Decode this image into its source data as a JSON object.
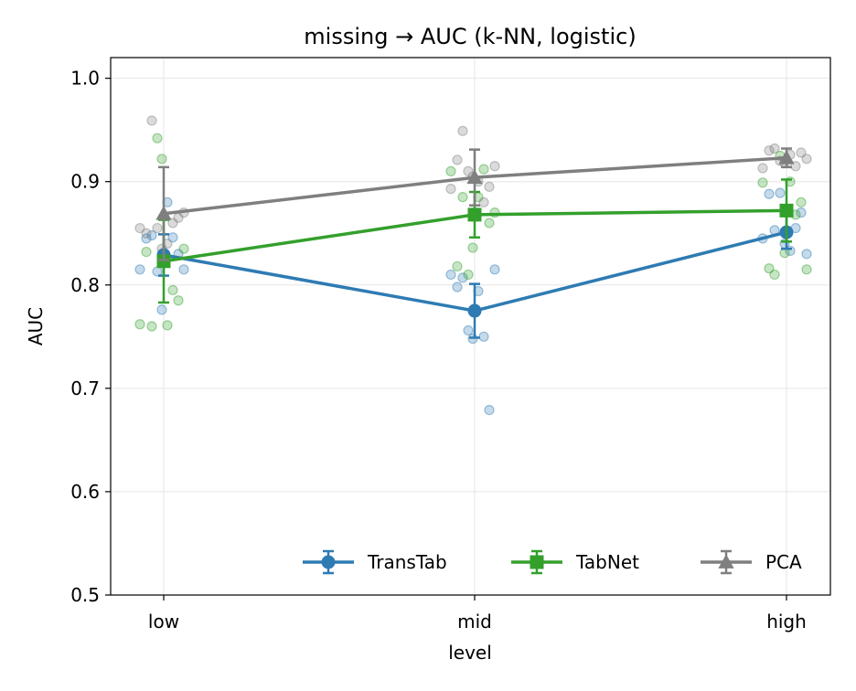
{
  "chart_data": {
    "type": "line",
    "title": "missing → AUC (k-NN, logistic)",
    "xlabel": "level",
    "ylabel": "AUC",
    "categories": [
      "low",
      "mid",
      "high"
    ],
    "ylim": [
      0.5,
      1.02
    ],
    "yticks": [
      "0.5",
      "0.6",
      "0.7",
      "0.8",
      "0.9",
      "1.0"
    ],
    "grid": true,
    "legend": "lower-right",
    "series": [
      {
        "name": "TransTab",
        "color": "#2e7bb3",
        "marker": "circle",
        "values": [
          0.829,
          0.775,
          0.851
        ],
        "err": [
          0.02,
          0.026,
          0.016
        ],
        "points": [
          [
            0.815,
            0.845,
            0.848,
            0.813,
            0.776,
            0.88,
            0.846,
            0.83,
            0.815
          ],
          [
            0.81,
            0.798,
            0.807,
            0.756,
            0.748,
            0.794,
            0.75,
            0.679,
            0.815
          ],
          [
            0.845,
            0.888,
            0.853,
            0.889,
            0.84,
            0.833,
            0.855,
            0.87,
            0.83
          ]
        ]
      },
      {
        "name": "TabNet",
        "color": "#33a02c",
        "marker": "square",
        "values": [
          0.823,
          0.868,
          0.872
        ],
        "err": [
          0.04,
          0.022,
          0.03
        ],
        "points": [
          [
            0.762,
            0.832,
            0.76,
            0.942,
            0.922,
            0.761,
            0.795,
            0.785,
            0.835
          ],
          [
            0.91,
            0.818,
            0.885,
            0.81,
            0.836,
            0.885,
            0.912,
            0.86,
            0.87
          ],
          [
            0.899,
            0.816,
            0.81,
            0.925,
            0.831,
            0.9,
            0.868,
            0.88,
            0.815
          ]
        ]
      },
      {
        "name": "PCA",
        "color": "#7f7f7f",
        "marker": "triangle",
        "values": [
          0.869,
          0.904,
          0.923
        ],
        "err": [
          0.045,
          0.027,
          0.009
        ],
        "points": [
          [
            0.855,
            0.85,
            0.959,
            0.855,
            0.835,
            0.84,
            0.86,
            0.865,
            0.87
          ],
          [
            0.893,
            0.921,
            0.949,
            0.91,
            0.905,
            0.9,
            0.88,
            0.895,
            0.915
          ],
          [
            0.913,
            0.93,
            0.932,
            0.92,
            0.918,
            0.926,
            0.915,
            0.928,
            0.922
          ]
        ]
      }
    ]
  }
}
